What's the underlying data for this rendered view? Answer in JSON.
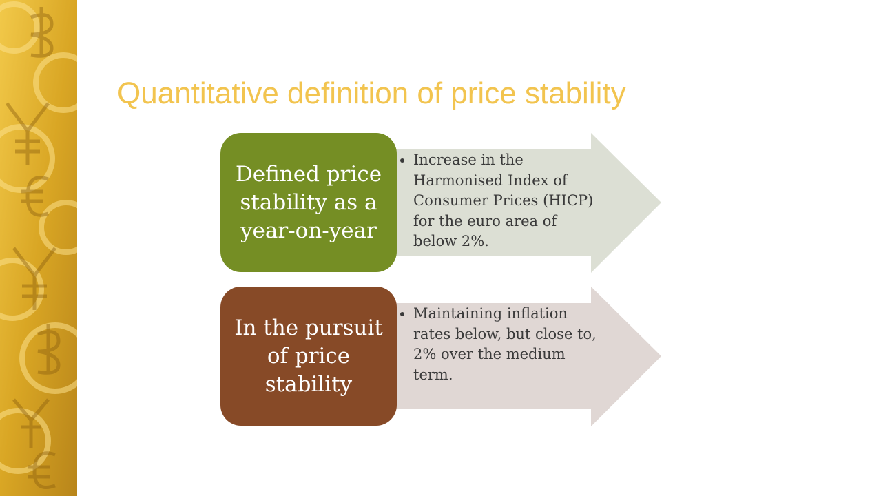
{
  "slide": {
    "title": "Quantitative definition of price stability",
    "colors": {
      "title": "#F2C44F",
      "rule": "#EBC86A",
      "strip": "#D9A624"
    }
  },
  "rows": [
    {
      "label": "Defined price stability as a year-on-year",
      "bullet": "Increase in the Harmonised Index of Consumer Prices (HICP) for the euro area of below 2%.",
      "box_color": "#758E24",
      "arrow_color": "#DCDFD4"
    },
    {
      "label": "In the pursuit of price stability",
      "bullet": "Maintaining inflation rates below, but close to, 2% over the medium term.",
      "box_color": "#874A27",
      "arrow_color": "#E0D7D4"
    }
  ]
}
